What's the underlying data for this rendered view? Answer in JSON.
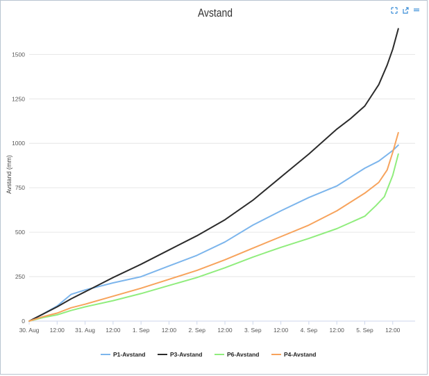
{
  "colors": {
    "P1": "#7cb5ec",
    "P3": "#2b2b2b",
    "P6": "#90ed7d",
    "P4": "#f7a35c",
    "grid": "#e6e6e6",
    "axis": "#ccd6eb"
  },
  "toolbar": {
    "expand_icon": "expand-icon",
    "export_icon": "export-icon",
    "menu_icon": "menu-icon"
  },
  "chart_data": {
    "type": "line",
    "title": "Avstand",
    "xlabel": "",
    "ylabel": "Avstand (mm)",
    "xlim": [
      0,
      6.9
    ],
    "ylim": [
      0,
      1650
    ],
    "y_ticks": [
      0,
      250,
      500,
      750,
      1000,
      1250,
      1500
    ],
    "x_ticks": [
      {
        "pos": 0.0,
        "label": "30. Aug"
      },
      {
        "pos": 0.5,
        "label": "12:00"
      },
      {
        "pos": 1.0,
        "label": "31. Aug"
      },
      {
        "pos": 1.5,
        "label": "12:00"
      },
      {
        "pos": 2.0,
        "label": "1. Sep"
      },
      {
        "pos": 2.5,
        "label": "12:00"
      },
      {
        "pos": 3.0,
        "label": "2. Sep"
      },
      {
        "pos": 3.5,
        "label": "12:00"
      },
      {
        "pos": 4.0,
        "label": "3. Sep"
      },
      {
        "pos": 4.5,
        "label": "12:00"
      },
      {
        "pos": 5.0,
        "label": "4. Sep"
      },
      {
        "pos": 5.5,
        "label": "12:00"
      },
      {
        "pos": 6.0,
        "label": "5. Sep"
      },
      {
        "pos": 6.5,
        "label": "12:00"
      }
    ],
    "legend_position": "bottom-center",
    "series": [
      {
        "name": "P1-Avstand",
        "key": "P1",
        "x": [
          0,
          0.25,
          0.5,
          0.75,
          1.0,
          1.25,
          1.5,
          2.0,
          2.5,
          3.0,
          3.5,
          4.0,
          4.5,
          5.0,
          5.5,
          6.0,
          6.25,
          6.5,
          6.6
        ],
        "y": [
          0,
          40,
          85,
          150,
          175,
          195,
          215,
          250,
          310,
          370,
          445,
          540,
          620,
          695,
          760,
          860,
          900,
          960,
          990
        ]
      },
      {
        "name": "P3-Avstand",
        "key": "P3",
        "x": [
          0,
          0.25,
          0.5,
          0.75,
          1.0,
          1.25,
          1.5,
          2.0,
          2.5,
          3.0,
          3.5,
          4.0,
          4.5,
          5.0,
          5.5,
          5.75,
          6.0,
          6.25,
          6.4,
          6.5,
          6.6
        ],
        "y": [
          0,
          40,
          80,
          125,
          165,
          205,
          245,
          320,
          400,
          480,
          570,
          680,
          810,
          940,
          1080,
          1140,
          1210,
          1330,
          1440,
          1530,
          1645
        ]
      },
      {
        "name": "P6-Avstand",
        "key": "P6",
        "x": [
          0,
          0.25,
          0.5,
          0.75,
          1.0,
          1.5,
          2.0,
          2.5,
          3.0,
          3.5,
          4.0,
          4.5,
          5.0,
          5.5,
          6.0,
          6.2,
          6.35,
          6.5,
          6.6
        ],
        "y": [
          0,
          20,
          35,
          60,
          80,
          115,
          155,
          200,
          245,
          300,
          360,
          415,
          465,
          520,
          590,
          650,
          700,
          820,
          940
        ]
      },
      {
        "name": "P4-Avstand",
        "key": "P4",
        "x": [
          0,
          0.25,
          0.5,
          0.75,
          1.0,
          1.5,
          2.0,
          2.5,
          3.0,
          3.5,
          4.0,
          4.5,
          5.0,
          5.5,
          6.0,
          6.25,
          6.4,
          6.5,
          6.6
        ],
        "y": [
          0,
          25,
          45,
          75,
          95,
          140,
          185,
          235,
          285,
          345,
          410,
          475,
          540,
          620,
          720,
          780,
          850,
          950,
          1060
        ]
      }
    ]
  }
}
